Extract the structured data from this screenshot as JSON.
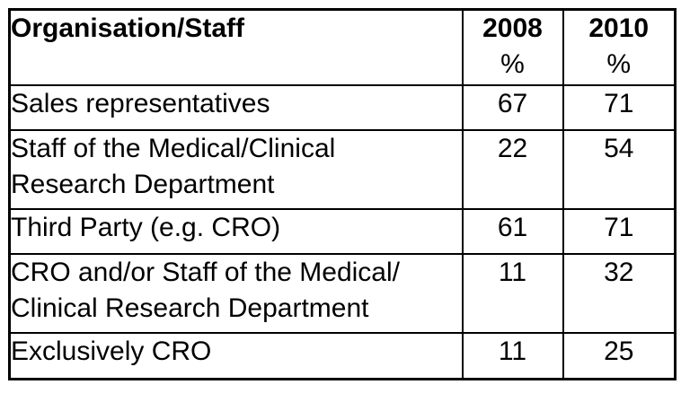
{
  "meta": {
    "background_color": "#ffffff",
    "border_color": "#000000",
    "text_color": "#000000"
  },
  "table": {
    "header": {
      "organisation_label": "Organisation/Staff",
      "col_2008_year": "2008",
      "col_2008_unit": "%",
      "col_2010_year": "2010",
      "col_2010_unit": "%"
    },
    "rows": [
      {
        "label": "Sales representatives",
        "v2008": "67",
        "v2010": "71"
      },
      {
        "label": "Staff of the Medical/Clinical\nResearch Department",
        "v2008": "22",
        "v2010": "54"
      },
      {
        "label": "Third Party (e.g. CRO)",
        "v2008": "61",
        "v2010": "71"
      },
      {
        "label": "CRO and/or Staff of the Medical/\nClinical Research Department",
        "v2008": "11",
        "v2010": "32"
      },
      {
        "label": "Exclusively CRO",
        "v2008": "11",
        "v2010": "25"
      }
    ]
  },
  "chart_data": {
    "type": "table",
    "columns": [
      "Organisation/Staff",
      "2008 %",
      "2010 %"
    ],
    "categories": [
      "Sales representatives",
      "Staff of the Medical/Clinical Research Department",
      "Third Party (e.g. CRO)",
      "CRO and/or Staff of the Medical/Clinical Research Department",
      "Exclusively CRO"
    ],
    "series": [
      {
        "name": "2008 %",
        "values": [
          67,
          22,
          61,
          11,
          11
        ]
      },
      {
        "name": "2010 %",
        "values": [
          71,
          54,
          71,
          32,
          25
        ]
      }
    ],
    "layout": {
      "grid": "full-borders",
      "header_row": true,
      "unit": "percent"
    }
  }
}
